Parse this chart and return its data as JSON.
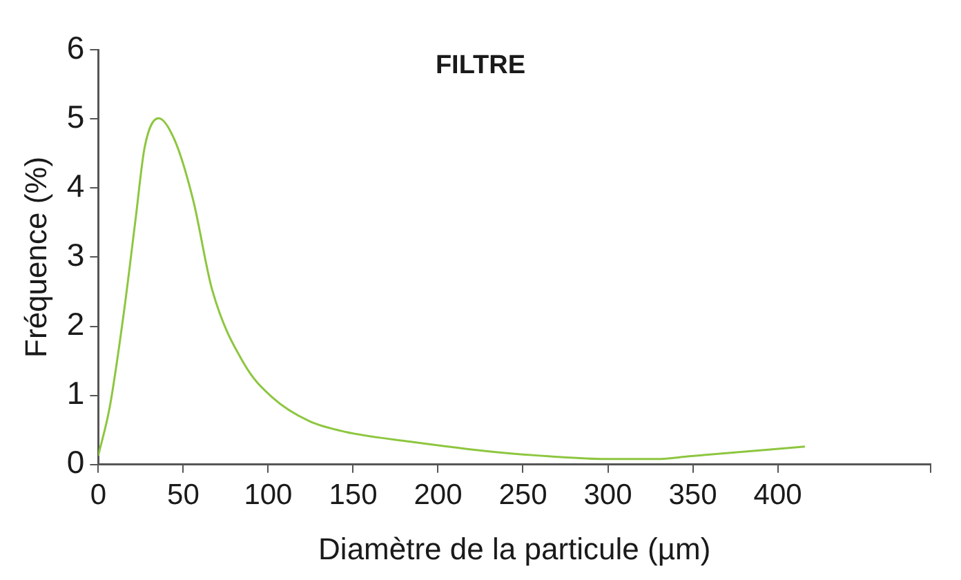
{
  "chart_data": {
    "type": "line",
    "title": "FILTRE",
    "xlabel": "Diamètre de la particule (µm)",
    "ylabel": "Fréquence (%)",
    "x": [
      0,
      6.8,
      15,
      21.9,
      27.3,
      35.5,
      45,
      56,
      67,
      86,
      102.5,
      124,
      146,
      184,
      234,
      265,
      299,
      329,
      348,
      416
    ],
    "series": [
      {
        "color": "#8dc63f",
        "values": [
          0.13,
          0.84,
          2.19,
          3.54,
          4.59,
          5.01,
          4.69,
          3.81,
          2.53,
          1.45,
          0.97,
          0.63,
          0.47,
          0.33,
          0.18,
          0.12,
          0.08,
          0.08,
          0.12,
          0.26
        ]
      }
    ],
    "xlim": [
      0,
      490
    ],
    "xticks": [
      0,
      50,
      100,
      150,
      200,
      250,
      300,
      350,
      400,
      {
        "value": 490,
        "label": null
      }
    ],
    "ylim": [
      0,
      6
    ],
    "yticks": [
      0,
      1,
      2,
      3,
      4,
      5,
      6
    ],
    "grid": false,
    "legend": false
  }
}
